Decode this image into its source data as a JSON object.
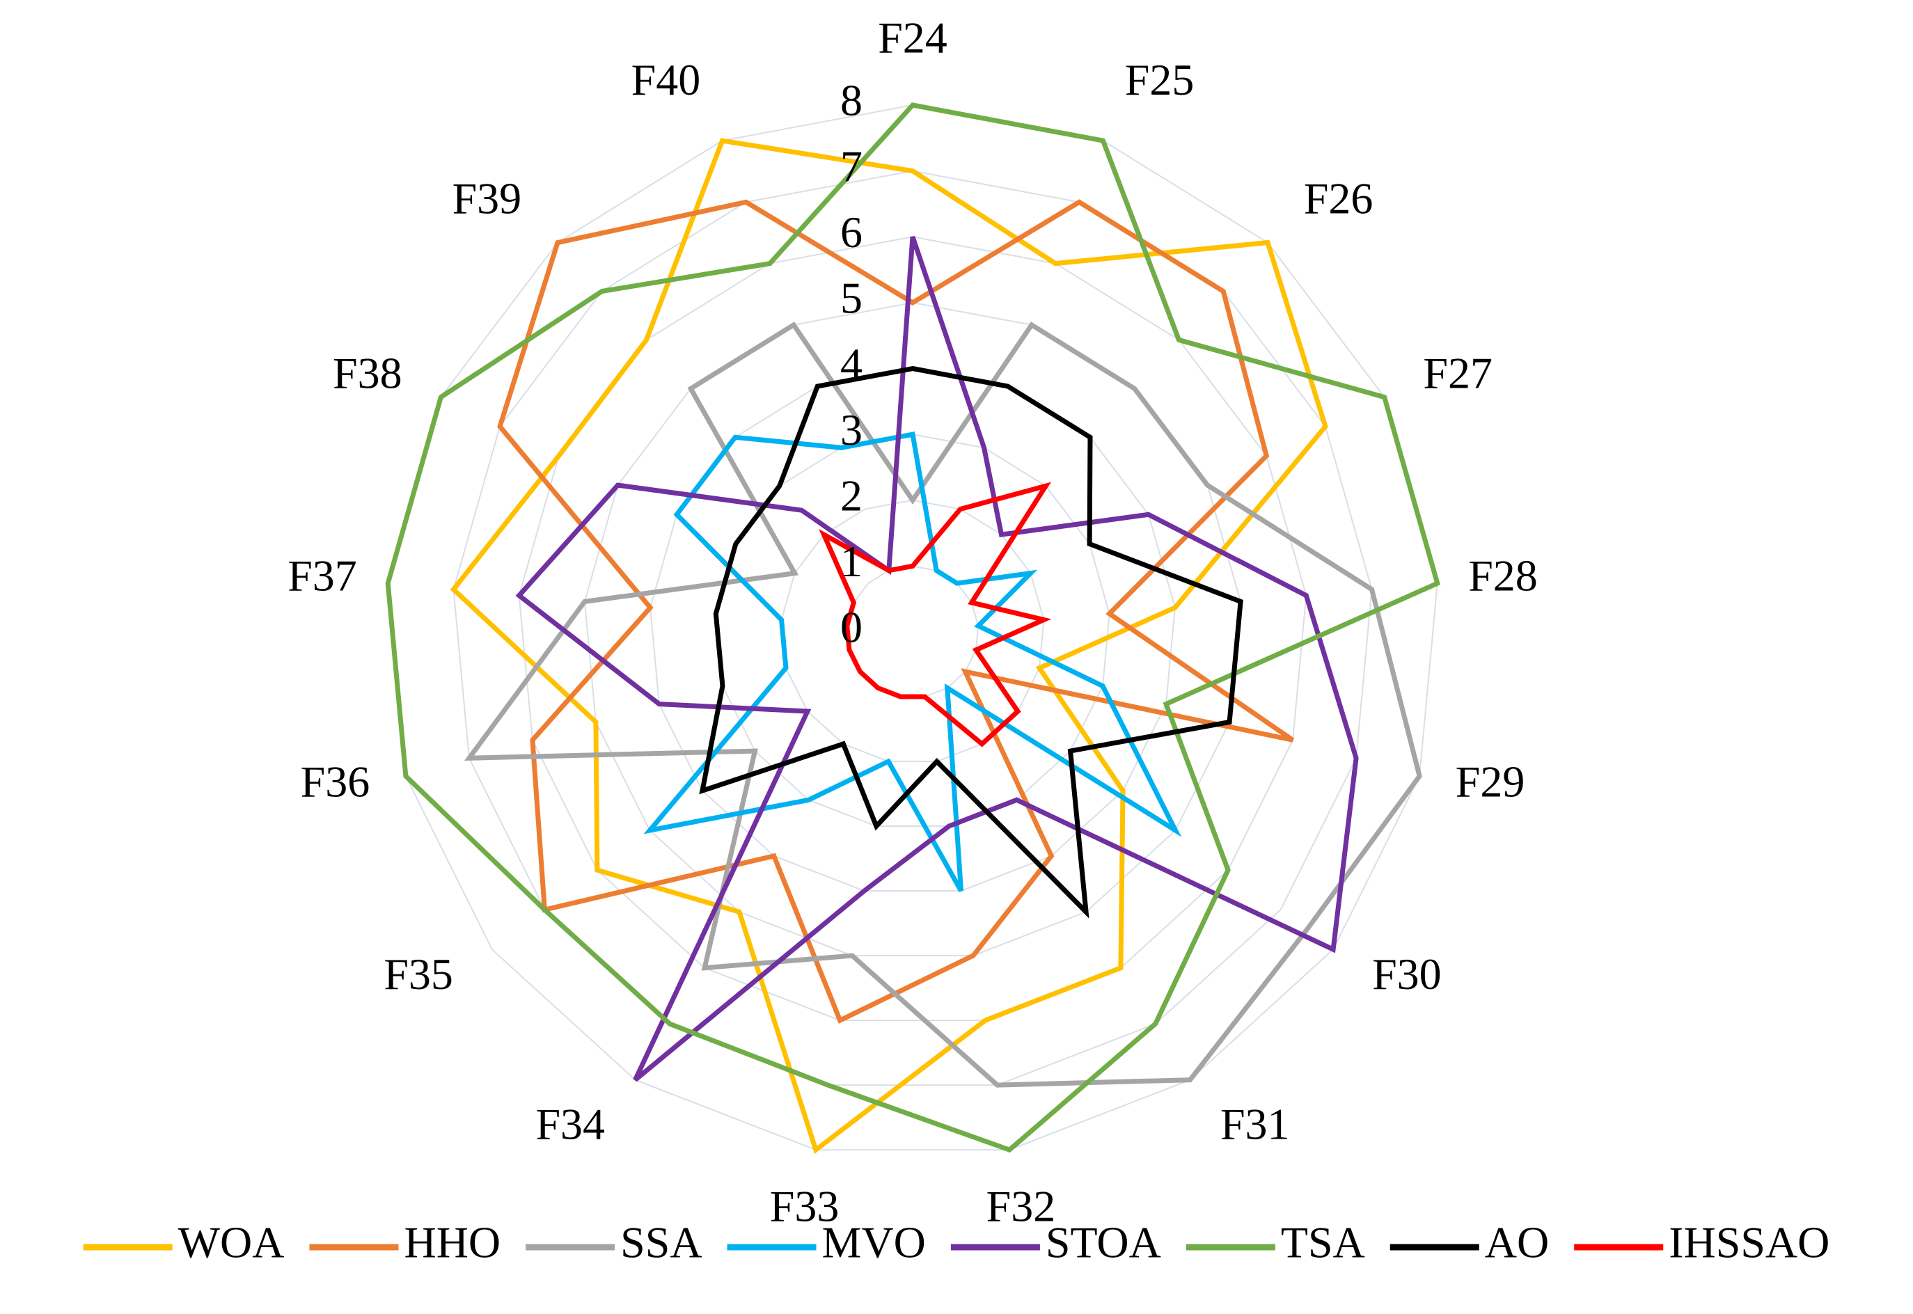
{
  "chart_data": {
    "type": "radar",
    "categories": [
      "F24",
      "F25",
      "F26",
      "F27",
      "F28",
      "F29",
      "F30",
      "F31",
      "F32",
      "F33",
      "F34",
      "F35",
      "F36",
      "F37",
      "F38",
      "F39",
      "F40"
    ],
    "ylim": [
      0,
      8
    ],
    "yticks": [
      0,
      1,
      2,
      3,
      4,
      5,
      6,
      7,
      8
    ],
    "grid": true,
    "legend": "bottom",
    "series": [
      {
        "name": "WOA",
        "color": "#FFC000",
        "values": [
          7,
          6,
          8,
          7,
          4,
          2,
          4,
          6,
          6,
          8,
          5,
          6,
          5,
          7,
          6,
          6,
          8
        ]
      },
      {
        "name": "HHO",
        "color": "#ED7D31",
        "values": [
          5,
          7,
          7,
          6,
          3,
          6,
          1,
          4,
          5,
          6,
          4,
          7,
          6,
          4,
          7,
          8,
          7
        ]
      },
      {
        "name": "SSA",
        "color": "#A5A5A5",
        "values": [
          2,
          5,
          5,
          5,
          7,
          8,
          7.5,
          8,
          7,
          5,
          6,
          3,
          7,
          5,
          2,
          5,
          5
        ]
      },
      {
        "name": "MVO",
        "color": "#00B0F0",
        "values": [
          3,
          1,
          1,
          2,
          1,
          3,
          5,
          1,
          4,
          2,
          3,
          5,
          2,
          2,
          4,
          4,
          3
        ]
      },
      {
        "name": "STOA",
        "color": "#7030A0",
        "values": [
          6,
          3,
          2,
          4,
          6,
          7,
          8,
          3,
          3,
          4,
          8,
          2,
          4,
          6,
          5,
          2.5,
          1
        ]
      },
      {
        "name": "TSA",
        "color": "#70AD47",
        "values": [
          8,
          8,
          6,
          8,
          8,
          4,
          6,
          7,
          8,
          7,
          7,
          7,
          8,
          8,
          8,
          7,
          6
        ]
      },
      {
        "name": "AO",
        "color": "#000000",
        "values": [
          4,
          4,
          4,
          3,
          5,
          5,
          3,
          5,
          2,
          3,
          2,
          4,
          3,
          3,
          3,
          3,
          4
        ]
      },
      {
        "name": "IHSSAO",
        "color": "#FF0000",
        "values": [
          1,
          2,
          3,
          1,
          2,
          1,
          2,
          2,
          1,
          1,
          1,
          1,
          1,
          1,
          1,
          2,
          1
        ]
      }
    ]
  }
}
